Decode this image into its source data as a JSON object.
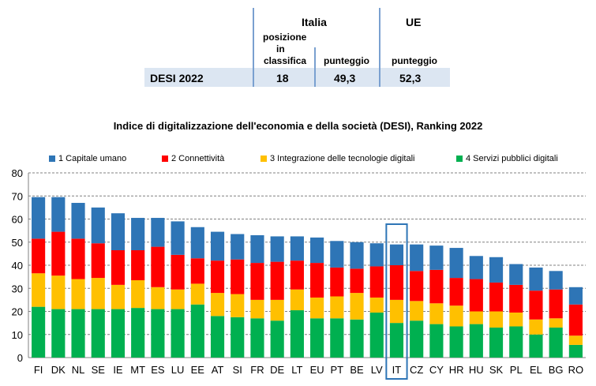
{
  "summary_table": {
    "italia_header": "Italia",
    "ue_header": "UE",
    "col_posizione": [
      "posizione",
      "in",
      "classifica"
    ],
    "col_punteggio": "punteggio",
    "col_punteggio_ue": "punteggio",
    "row_label": "DESI 2022",
    "posizione": "18",
    "punteggio_italia": "49,3",
    "punteggio_ue": "52,3"
  },
  "chart_data": {
    "type": "bar",
    "stacked": true,
    "title": "Indice di digitalizzazione dell'economia e della società (DESI), Ranking 2022",
    "xlabel": "",
    "ylabel": "",
    "ylim": [
      0,
      80
    ],
    "yticks": [
      "0",
      "10",
      "20",
      "30",
      "40",
      "50",
      "60",
      "70",
      "80"
    ],
    "grid": true,
    "legend_position": "top",
    "highlight_category": "IT",
    "categories": [
      "FI",
      "DK",
      "NL",
      "SE",
      "IE",
      "MT",
      "ES",
      "LU",
      "EE",
      "AT",
      "SI",
      "FR",
      "DE",
      "LT",
      "EU",
      "PT",
      "BE",
      "LV",
      "IT",
      "CZ",
      "CY",
      "HR",
      "HU",
      "SK",
      "PL",
      "EL",
      "BG",
      "RO"
    ],
    "series": [
      {
        "name": "4 Servizi pubblici digitali",
        "color": "#00b050",
        "values": [
          22,
          21,
          21,
          21,
          21,
          21.5,
          21,
          21,
          23,
          18,
          17.5,
          17,
          16,
          20.5,
          17,
          17,
          16.5,
          19.5,
          15,
          16,
          14.5,
          13.5,
          14.5,
          13,
          13.5,
          10,
          13,
          5.5
        ]
      },
      {
        "name": "3 Integrazione delle tecnologie digitali",
        "color": "#ffc000",
        "values": [
          14.5,
          14.5,
          13,
          13.5,
          10.5,
          12,
          9.5,
          8.5,
          9,
          10,
          10,
          8,
          9,
          9,
          9,
          9.5,
          11.5,
          6.5,
          10,
          8.5,
          9,
          9,
          5.5,
          7,
          6,
          6.5,
          4,
          4
        ]
      },
      {
        "name": "2 Connettività",
        "color": "#ff0000",
        "values": [
          15,
          19,
          17.5,
          15,
          15,
          13,
          17.5,
          15,
          11,
          14,
          15,
          16,
          16.5,
          12.5,
          15,
          12.5,
          10.5,
          13.5,
          15,
          13,
          14.5,
          12,
          14,
          12.5,
          12,
          12.5,
          12.5,
          13.5
        ]
      },
      {
        "name": "1 Capitale umano",
        "color": "#2e75b6",
        "values": [
          18,
          15,
          15.5,
          15.5,
          16,
          14,
          12.5,
          14.5,
          13.5,
          12.5,
          11,
          12,
          11,
          10.5,
          11,
          11.5,
          11.5,
          10,
          9,
          11.5,
          10.5,
          13,
          10,
          11,
          9,
          10,
          8,
          7.5
        ]
      }
    ]
  }
}
